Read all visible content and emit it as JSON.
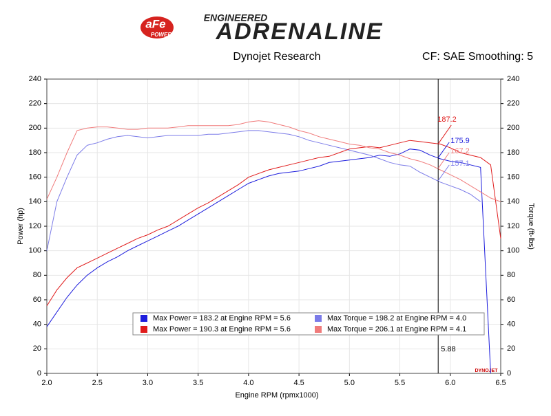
{
  "chart_data": {
    "type": "line",
    "logo_mark": "aFe",
    "logo_sub": "POWER",
    "brand_top": "ENGINEERED",
    "brand": "ADRENALINE",
    "title": "Dynojet Research",
    "subtitle": "CF: SAE Smoothing: 5",
    "watermark": "DYNOJET",
    "xlabel": "Engine RPM (rpmx1000)",
    "ylabel": "Power (hp)",
    "y2label": "Torque (ft-lbs)",
    "xlim": [
      2.0,
      6.5
    ],
    "xticks": [
      {
        "value": 2.0,
        "label": "2.0"
      },
      2.5,
      {
        "value": 3.0,
        "label": "3.0"
      },
      3.5,
      {
        "value": 4.0,
        "label": "4.0"
      },
      4.5,
      {
        "value": 5.0,
        "label": "5.0"
      },
      5.5,
      {
        "value": 6.0,
        "label": "6.0"
      },
      6.5
    ],
    "ylim": [
      0,
      240
    ],
    "yticks": [
      0,
      20,
      40,
      60,
      80,
      100,
      120,
      140,
      160,
      180,
      200,
      220,
      240
    ],
    "y2lim": [
      0,
      240
    ],
    "y2ticks": [
      0,
      20,
      40,
      60,
      80,
      100,
      120,
      140,
      160,
      180,
      200,
      220,
      240
    ],
    "grid": true,
    "x": [
      2.0,
      2.1,
      2.2,
      2.3,
      2.4,
      2.5,
      2.6,
      2.7,
      2.8,
      2.9,
      3.0,
      3.1,
      3.2,
      3.3,
      3.4,
      3.5,
      3.6,
      3.7,
      3.8,
      3.9,
      4.0,
      4.1,
      4.2,
      4.3,
      4.4,
      4.5,
      4.6,
      4.7,
      4.8,
      4.9,
      5.0,
      5.1,
      5.2,
      5.3,
      5.4,
      5.5,
      5.6,
      5.7,
      5.8,
      5.9,
      6.0,
      6.1,
      6.2,
      6.3,
      6.4,
      6.5
    ],
    "series": [
      {
        "name": "Max Power = 183.2 at Engine RPM = 5.6",
        "color": "#1c1cdc",
        "axis": "y",
        "values": [
          38,
          50,
          62,
          72,
          80,
          86,
          91,
          95,
          100,
          104,
          108,
          112,
          116,
          120,
          125,
          130,
          135,
          140,
          145,
          150,
          155,
          158,
          161,
          163,
          164,
          165,
          167,
          169,
          172,
          173,
          174,
          175,
          176,
          178,
          177,
          179,
          183,
          182,
          178,
          175,
          173,
          172,
          170,
          168,
          0,
          null
        ]
      },
      {
        "name": "Max Torque = 198.2 at Engine RPM = 4.0",
        "color": "#7b7be8",
        "axis": "y2",
        "values": [
          100,
          140,
          160,
          178,
          186,
          188,
          191,
          193,
          194,
          193,
          192,
          193,
          194,
          194,
          194,
          194,
          195,
          195,
          196,
          197,
          198,
          198,
          197,
          196,
          195,
          193,
          190,
          188,
          186,
          184,
          182,
          180,
          178,
          175,
          172,
          170,
          169,
          164,
          160,
          156,
          153,
          150,
          146,
          140,
          null,
          null
        ]
      },
      {
        "name": "Max Power = 190.3 at Engine RPM = 5.6",
        "color": "#e01b1b",
        "axis": "y",
        "values": [
          55,
          68,
          78,
          86,
          90,
          94,
          98,
          102,
          106,
          110,
          113,
          117,
          120,
          125,
          130,
          135,
          139,
          144,
          149,
          154,
          160,
          163,
          166,
          168,
          170,
          172,
          174,
          176,
          177,
          180,
          183,
          184,
          185,
          184,
          186,
          188,
          190,
          189,
          188,
          187,
          184,
          180,
          178,
          176,
          170,
          110
        ]
      },
      {
        "name": "Max Torque = 206.1 at Engine RPM = 4.1",
        "color": "#f07b7b",
        "axis": "y2",
        "values": [
          142,
          160,
          180,
          198,
          200,
          201,
          201,
          200,
          199,
          199,
          200,
          200,
          200,
          201,
          202,
          202,
          202,
          202,
          202,
          203,
          205,
          206,
          205,
          203,
          201,
          198,
          196,
          193,
          191,
          189,
          187,
          186,
          184,
          183,
          180,
          178,
          175,
          173,
          170,
          166,
          162,
          158,
          153,
          148,
          143,
          140
        ]
      }
    ],
    "cursor": {
      "x": 5.88,
      "label": "5.88",
      "readings": [
        {
          "value": 187.2,
          "color": "#e01b1b"
        },
        {
          "value": 175.9,
          "color": "#1c1cdc"
        },
        {
          "value": 167.2,
          "color": "#f07b7b"
        },
        {
          "value": 157.1,
          "color": "#7b7be8"
        }
      ]
    }
  }
}
